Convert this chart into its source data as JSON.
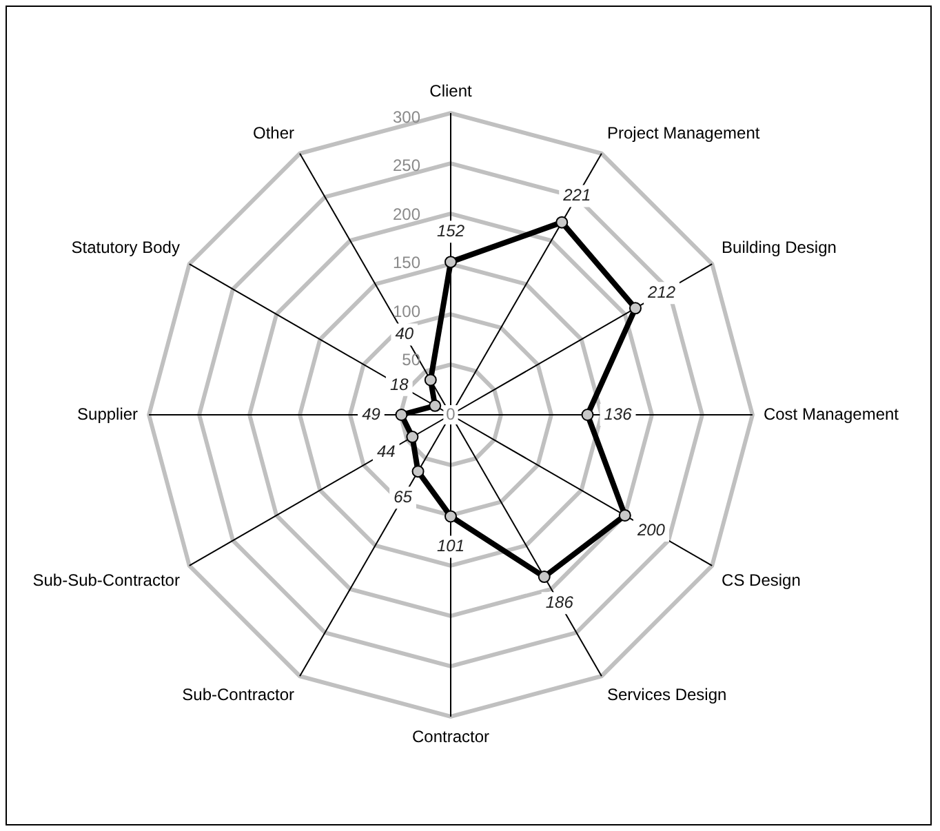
{
  "chart_data": {
    "type": "radar",
    "categories": [
      "Client",
      "Project Management",
      "Building Design",
      "Cost Management",
      "CS Design",
      "Services Design",
      "Contractor",
      "Sub-Contractor",
      "Sub-Sub-Contractor",
      "Supplier",
      "Statutory Body",
      "Other"
    ],
    "series": [
      {
        "color": "#000000",
        "values": [
          152,
          221,
          212,
          136,
          200,
          186,
          101,
          65,
          44,
          49,
          18,
          40
        ]
      }
    ],
    "ylim": [
      0,
      300
    ],
    "yticks": [
      0,
      50,
      100,
      150,
      200,
      250,
      300
    ],
    "grid": true,
    "legend": false,
    "marker": "circle",
    "data_labels": true
  }
}
